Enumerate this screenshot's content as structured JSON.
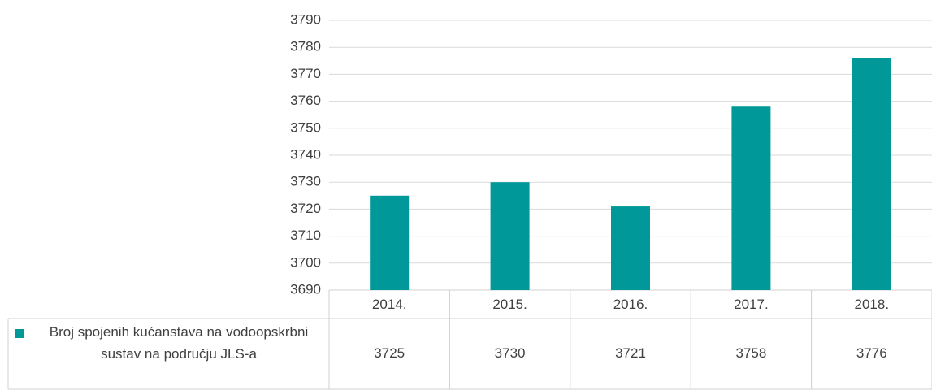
{
  "chart_data": {
    "type": "bar",
    "categories": [
      "2014.",
      "2015.",
      "2016.",
      "2017.",
      "2018."
    ],
    "series": [
      {
        "name": "Broj spojenih kućanstava na vodoopskrbni sustav na području JLS-a",
        "color": "#009899",
        "values": [
          3725,
          3730,
          3721,
          3758,
          3776
        ]
      }
    ],
    "ylim": [
      3690,
      3790
    ],
    "yticks": [
      3690,
      3700,
      3710,
      3720,
      3730,
      3740,
      3750,
      3760,
      3770,
      3780,
      3790
    ],
    "grid": true,
    "data_table": true
  }
}
